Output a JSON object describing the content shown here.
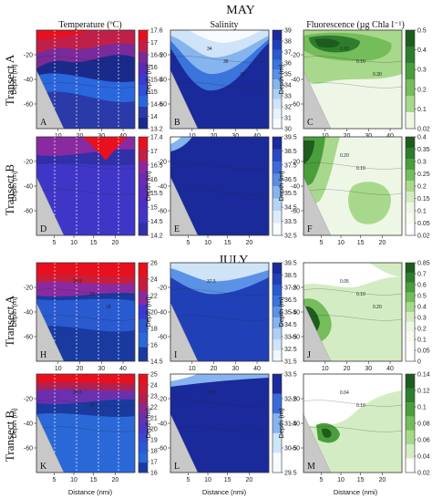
{
  "headers": {
    "month_may": "MAY",
    "month_july": "JULY",
    "col_temperature": "Temperature (ºC)",
    "col_salinity": "Salinity",
    "col_fluorescence": "Fluorescence (µg Chla l⁻¹)",
    "row_transect_a": "Transect A",
    "row_transect_b": "Transect B",
    "ylabel": "Depth (m)",
    "xlabel": "Distance (nmi)"
  },
  "chart_data": [
    {
      "type": "heatmap",
      "panel": "A",
      "month": "MAY",
      "transect": "A",
      "variable": "temperature",
      "x_ticks": [
        10,
        20,
        30,
        40
      ],
      "y_ticks": [
        -20,
        -40,
        -60
      ],
      "colorbar_ticks": [
        17.6,
        17,
        16.5,
        16,
        15.5,
        15,
        14.5,
        14,
        13.2
      ],
      "colors": [
        "#e8101e",
        "#c02048",
        "#7a2a9a",
        "#5a2ab8",
        "#3a3ad2",
        "#2f50d8",
        "#2a66dc",
        "#2a3aa8",
        "#1a2a8a"
      ],
      "pattern": "temp",
      "stations": true,
      "contour_labels": []
    },
    {
      "type": "heatmap",
      "panel": "B",
      "month": "MAY",
      "transect": "A",
      "variable": "salinity",
      "x_ticks": [
        10,
        20,
        30,
        40
      ],
      "y_ticks": [
        -20,
        -40,
        -60
      ],
      "colorbar_ticks": [
        39,
        38,
        37,
        36,
        35,
        34,
        33,
        32,
        31,
        30
      ],
      "colors": [
        "#1a2a9a",
        "#2040b8",
        "#2a5ad0",
        "#3a74dc",
        "#5c92e6",
        "#86b4ee",
        "#aed0f4",
        "#cfe4f8",
        "#e8f2fc",
        "#f6fbff"
      ],
      "pattern": "salinity",
      "stations": false,
      "contour_labels": [
        "34",
        "36",
        "38"
      ]
    },
    {
      "type": "heatmap",
      "panel": "C",
      "month": "MAY",
      "transect": "A",
      "variable": "fluorescence",
      "x_ticks": [
        10,
        20,
        30,
        40
      ],
      "y_ticks": [
        -20,
        -40,
        -60
      ],
      "colorbar_ticks": [
        0.5,
        0.4,
        0.3,
        0.2,
        0.1,
        0.02
      ],
      "colors": [
        "#1e5c1e",
        "#2e7d2e",
        "#4a9e3c",
        "#74bd5a",
        "#a8d88c",
        "#eef7e6"
      ],
      "pattern": "fluor_top",
      "stations": false,
      "contour_labels": [
        "0.20",
        "0.10",
        "0.30"
      ]
    },
    {
      "type": "heatmap",
      "panel": "D",
      "month": "MAY",
      "transect": "B",
      "variable": "temperature",
      "x_ticks": [
        5,
        10,
        15,
        20
      ],
      "y_ticks": [
        -20,
        -40,
        -60
      ],
      "colorbar_ticks": [
        17.4,
        17,
        16.5,
        16,
        15.5,
        15,
        14.5,
        14.2
      ],
      "colors": [
        "#e8101e",
        "#c02048",
        "#8a2aa0",
        "#6a2ab8",
        "#5a2cc0",
        "#4c30c4",
        "#3f36c8",
        "#3030a8"
      ],
      "pattern": "tempB",
      "stations": true,
      "contour_labels": []
    },
    {
      "type": "heatmap",
      "panel": "E",
      "month": "MAY",
      "transect": "B",
      "variable": "salinity",
      "x_ticks": [
        5,
        10,
        15,
        20
      ],
      "y_ticks": [
        -20,
        -40,
        -60
      ],
      "colorbar_ticks": [
        39.5,
        38.5,
        37.5,
        36.5,
        35.5,
        34.5,
        33.5,
        32.5
      ],
      "colors": [
        "#1a2a9a",
        "#2a48c0",
        "#3c6ad6",
        "#5a8ee4",
        "#86b4ee",
        "#b4d4f4",
        "#dcecfa",
        "#f6fbff"
      ],
      "pattern": "salinityB",
      "stations": false,
      "contour_labels": []
    },
    {
      "type": "heatmap",
      "panel": "F",
      "month": "MAY",
      "transect": "B",
      "variable": "fluorescence",
      "x_ticks": [
        5,
        10,
        15,
        20
      ],
      "y_ticks": [
        -20,
        -40,
        -60
      ],
      "colorbar_ticks": [
        0.4,
        0.35,
        0.3,
        0.25,
        0.2,
        0.15,
        0.1,
        0.05,
        0.02
      ],
      "colors": [
        "#1e5c1e",
        "#2e7d2e",
        "#4a9e3c",
        "#74bd5a",
        "#a8d88c",
        "#d4ecc4",
        "#eef7e6",
        "#f7fbf2",
        "#ffffff"
      ],
      "pattern": "fluorB",
      "stations": false,
      "contour_labels": [
        "0.20",
        "0.10"
      ]
    },
    {
      "type": "heatmap",
      "panel": "H",
      "month": "JULY",
      "transect": "A",
      "variable": "temperature",
      "x_ticks": [
        10,
        20,
        30,
        40
      ],
      "y_ticks": [
        -20,
        -40,
        -60
      ],
      "colorbar_ticks": [
        26,
        24,
        22,
        20,
        18,
        16,
        14.5
      ],
      "colors": [
        "#e8101e",
        "#c81e3a",
        "#8a2aa0",
        "#3a3ad2",
        "#2a5ad0",
        "#2a6ad8",
        "#1a3aa0"
      ],
      "pattern": "tempJul",
      "stations": true,
      "contour_labels": [
        "24.5",
        "22",
        "18"
      ]
    },
    {
      "type": "heatmap",
      "panel": "I",
      "month": "JULY",
      "transect": "A",
      "variable": "salinity",
      "x_ticks": [
        10,
        20,
        30,
        40
      ],
      "y_ticks": [
        -20,
        -40,
        -60
      ],
      "colorbar_ticks": [
        39.5,
        38.5,
        37.5,
        36.5,
        35.5,
        34.5,
        33.5,
        32.5,
        31.5
      ],
      "colors": [
        "#1a2a9a",
        "#2040b8",
        "#2a5ad0",
        "#3a74dc",
        "#5c92e6",
        "#86b4ee",
        "#aed0f4",
        "#cfe4f8",
        "#f0f7fd"
      ],
      "pattern": "salinityJul",
      "stations": false,
      "contour_labels": [
        "37.5"
      ]
    },
    {
      "type": "heatmap",
      "panel": "J",
      "month": "JULY",
      "transect": "A",
      "variable": "fluorescence",
      "x_ticks": [
        10,
        20,
        30,
        40
      ],
      "y_ticks": [
        -20,
        -40,
        -60
      ],
      "colorbar_ticks": [
        0.85,
        0.7,
        0.6,
        0.5,
        0.4,
        0.3,
        0.2,
        0.1,
        0.05,
        0
      ],
      "colors": [
        "#1e5c1e",
        "#2e7d2e",
        "#4a9e3c",
        "#74bd5a",
        "#a8d88c",
        "#d4ecc4",
        "#eef7e6",
        "#f7fbf2",
        "#ffffff",
        "#ffffff"
      ],
      "pattern": "fluorJul",
      "stations": false,
      "contour_labels": [
        "0.05",
        "0.10",
        "0.20"
      ]
    },
    {
      "type": "heatmap",
      "panel": "K",
      "month": "JULY",
      "transect": "B",
      "variable": "temperature",
      "x_ticks": [
        5,
        10,
        15,
        20
      ],
      "y_ticks": [
        -20,
        -40,
        -60
      ],
      "colorbar_ticks": [
        25,
        24,
        23,
        22,
        21,
        20,
        19,
        18,
        17,
        16
      ],
      "colors": [
        "#e8101e",
        "#d01a2e",
        "#b02050",
        "#8a2a90",
        "#6a30b0",
        "#4a38c8",
        "#3a48d0",
        "#2a58d4",
        "#2a68d8",
        "#1a3aa0"
      ],
      "pattern": "tempJulB",
      "stations": true,
      "contour_labels": [
        "24.5",
        "22"
      ]
    },
    {
      "type": "heatmap",
      "panel": "L",
      "month": "JULY",
      "transect": "B",
      "variable": "salinity",
      "x_ticks": [
        5,
        10,
        15,
        20
      ],
      "y_ticks": [
        -20,
        -40,
        -60
      ],
      "colorbar_ticks": [
        33.5,
        32.5,
        31.5,
        30.5,
        29.5
      ],
      "colors": [
        "#1a2a9a",
        "#3a6ad6",
        "#86b4ee",
        "#cfe4f8",
        "#f6fbff"
      ],
      "pattern": "salinityJulB",
      "stations": false,
      "contour_labels": [
        "33.5"
      ]
    },
    {
      "type": "heatmap",
      "panel": "M",
      "month": "JULY",
      "transect": "B",
      "variable": "fluorescence",
      "x_ticks": [
        5,
        10,
        15,
        20
      ],
      "y_ticks": [
        -20,
        -40,
        -60
      ],
      "colorbar_ticks": [
        0.14,
        0.12,
        0.1,
        0.08,
        0.06,
        0.04,
        0.02
      ],
      "colors": [
        "#1e5c1e",
        "#2e7d2e",
        "#4a9e3c",
        "#74bd5a",
        "#a8d88c",
        "#d4ecc4",
        "#ffffff"
      ],
      "pattern": "fluorJulB",
      "stations": false,
      "contour_labels": [
        "0.04",
        "0.10"
      ]
    }
  ]
}
